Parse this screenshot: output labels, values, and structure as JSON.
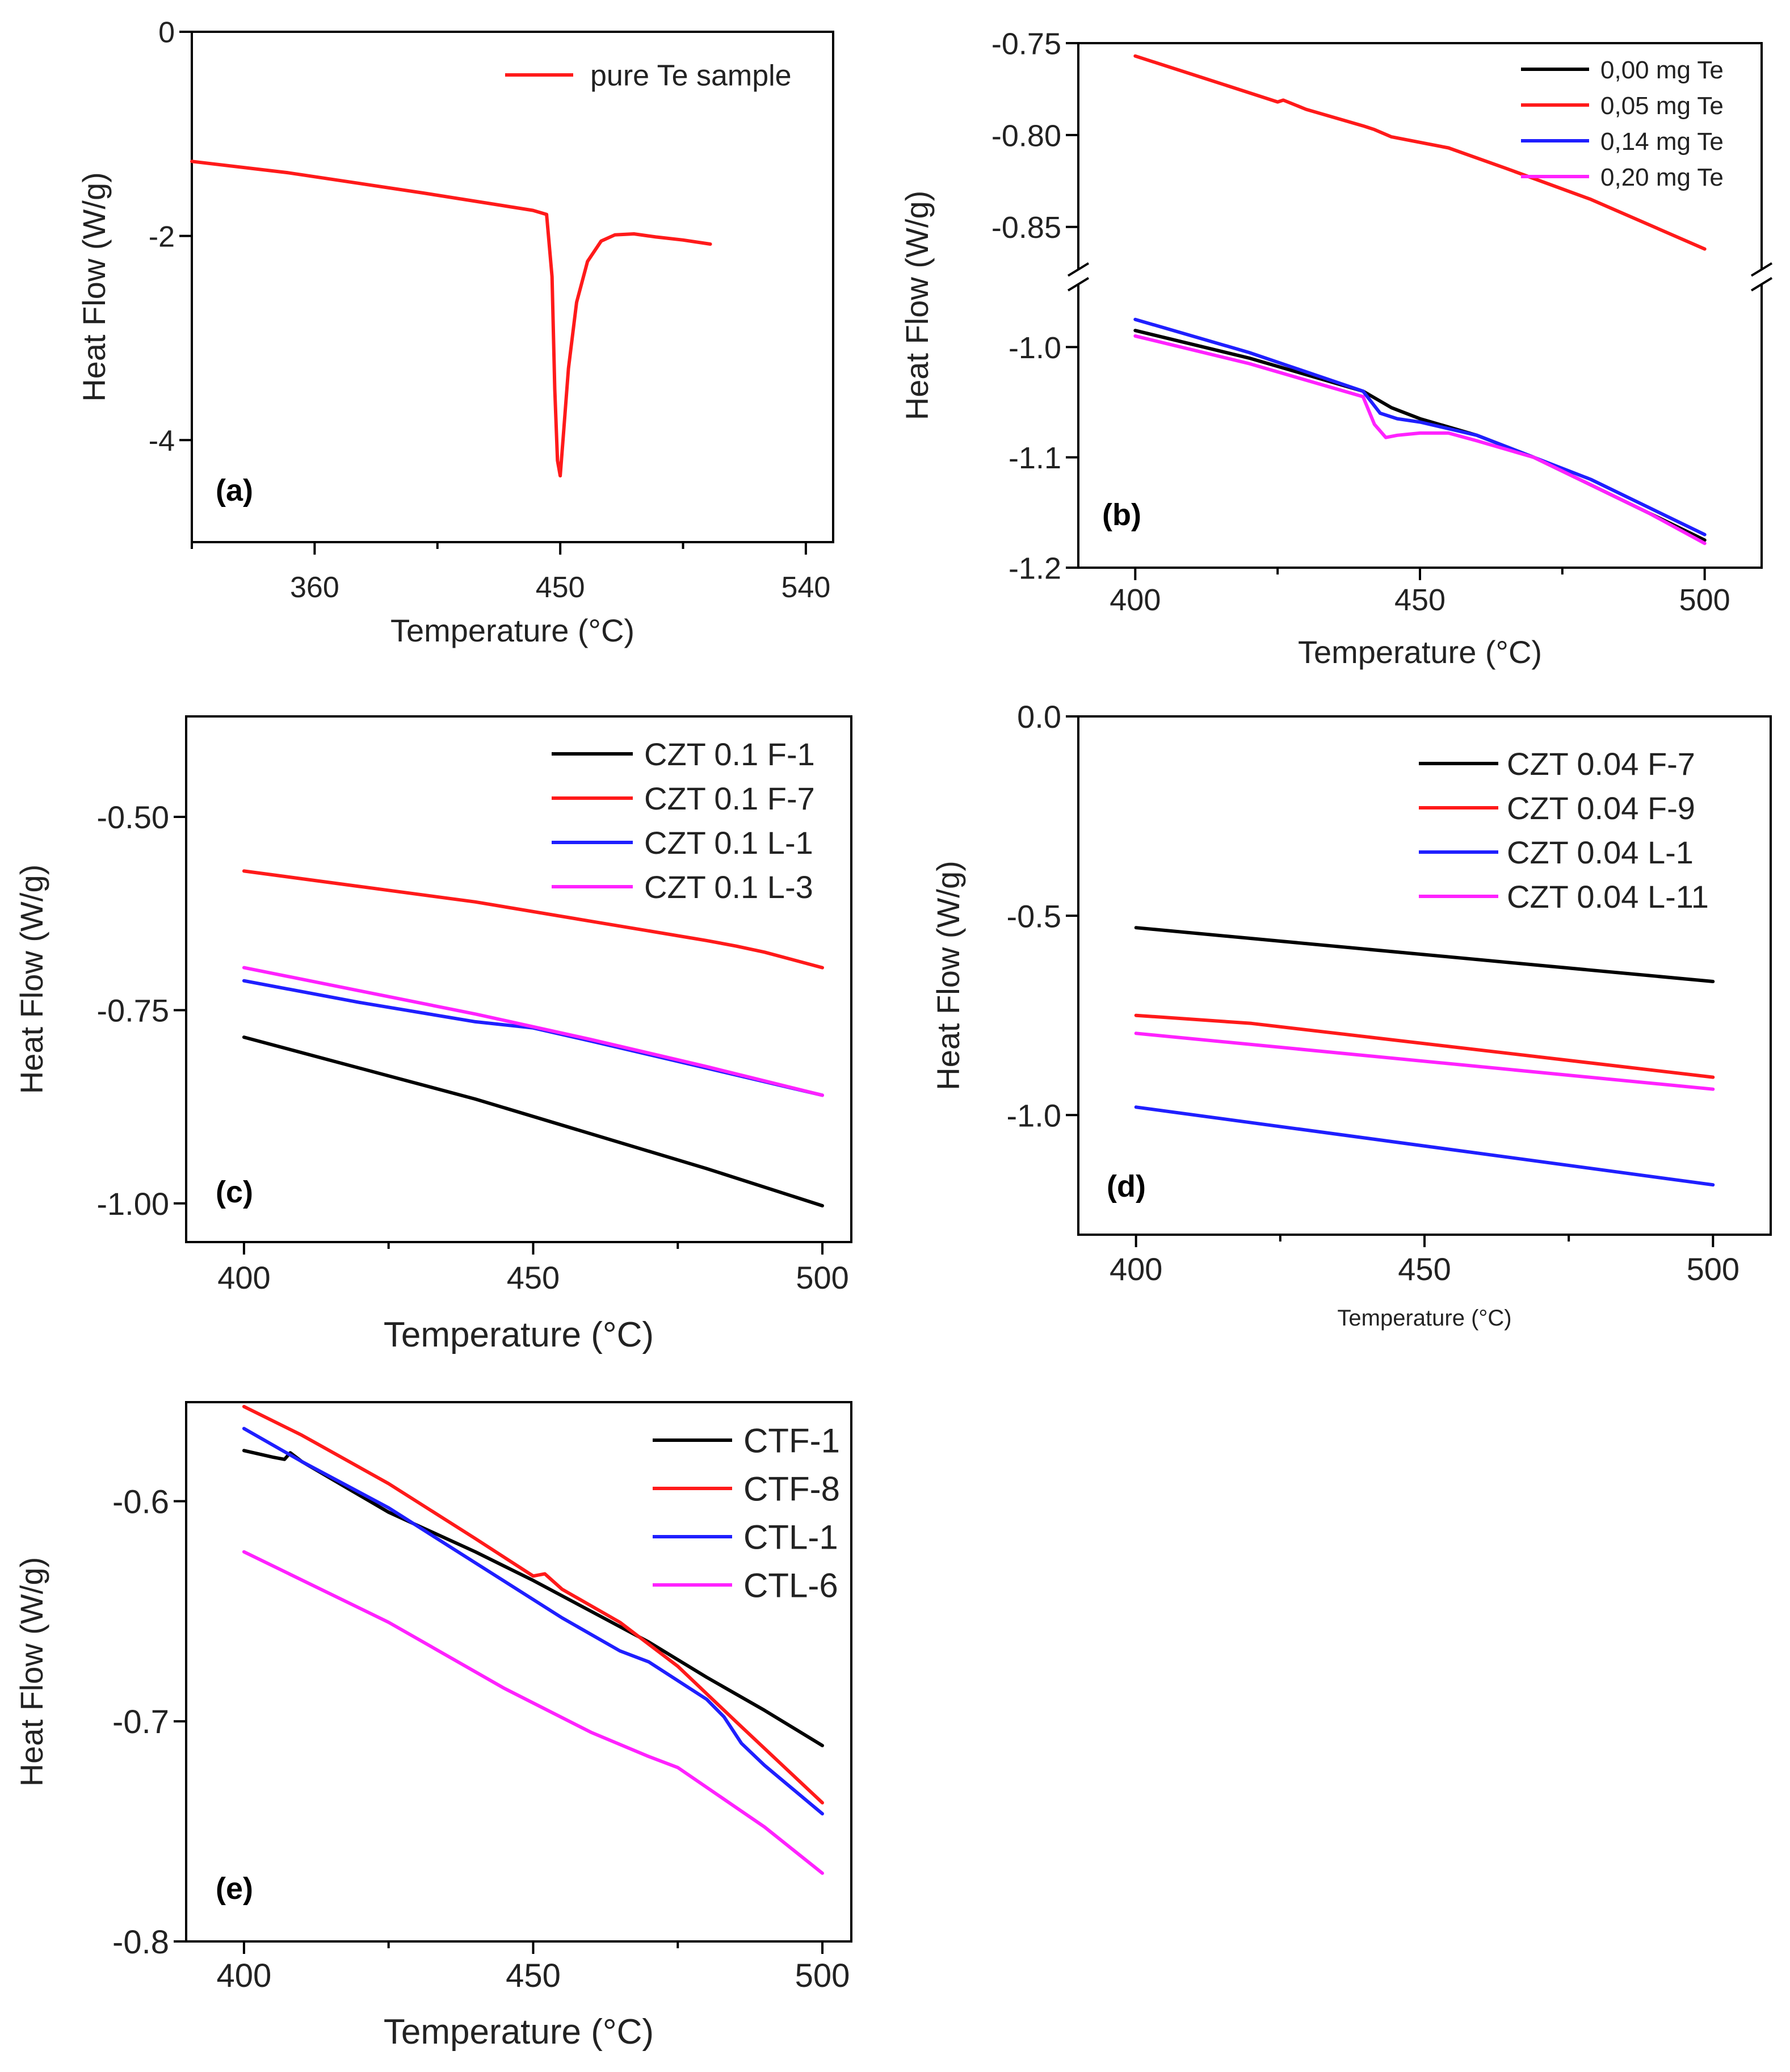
{
  "colors": {
    "black": "#000000",
    "red": "#ff1a1a",
    "blue": "#1f1fff",
    "magenta": "#ff22ff"
  },
  "chart_data": [
    {
      "panel": "(a)",
      "type": "line",
      "xlabel": "Temperature (°C)",
      "ylabel": "Heat Flow (W/g)",
      "xlim": [
        315,
        550
      ],
      "ylim": [
        -5,
        0
      ],
      "xticks": [
        360,
        450,
        540
      ],
      "yticks": [
        0,
        -2,
        -4
      ],
      "series": [
        {
          "name": "pure Te sample",
          "color": "red",
          "x": [
            315,
            350,
            400,
            440,
            445,
            447,
            448,
            449,
            450,
            451,
            453,
            456,
            460,
            465,
            470,
            477,
            485,
            495,
            505
          ],
          "y": [
            -1.27,
            -1.38,
            -1.58,
            -1.75,
            -1.79,
            -2.4,
            -3.5,
            -4.2,
            -4.35,
            -4.0,
            -3.3,
            -2.65,
            -2.25,
            -2.05,
            -1.99,
            -1.98,
            -2.01,
            -2.04,
            -2.08
          ]
        }
      ]
    },
    {
      "panel": "(b)",
      "type": "line",
      "xlabel": "Temperature (°C)",
      "ylabel": "Heat Flow (W/g)",
      "xlim": [
        390,
        510
      ],
      "xticks": [
        400,
        450,
        500
      ],
      "y_upper": {
        "lim": [
          -0.875,
          -0.75
        ],
        "ticks": [
          "-0.75",
          "-0.80",
          "-0.85"
        ]
      },
      "y_lower": {
        "lim": [
          -1.2,
          -0.94
        ],
        "ticks": [
          "-1.0",
          "-1.1",
          "-1.2"
        ]
      },
      "series": [
        {
          "name": "0,00 mg Te",
          "color": "black",
          "x": [
            400,
            420,
            440,
            445,
            450,
            460,
            470,
            480,
            490,
            500
          ],
          "y": [
            -0.985,
            -1.01,
            -1.04,
            -1.055,
            -1.065,
            -1.08,
            -1.1,
            -1.125,
            -1.15,
            -1.175
          ]
        },
        {
          "name": "0,05 mg Te",
          "color": "red",
          "x": [
            400,
            410,
            420,
            425,
            426,
            430,
            440,
            442,
            445,
            455,
            465,
            480,
            500
          ],
          "y": [
            -0.757,
            -0.767,
            -0.777,
            -0.782,
            -0.781,
            -0.786,
            -0.795,
            -0.797,
            -0.801,
            -0.807,
            -0.818,
            -0.835,
            -0.862
          ]
        },
        {
          "name": "0,14 mg Te",
          "color": "blue",
          "x": [
            400,
            420,
            440,
            443,
            446,
            450,
            460,
            470,
            480,
            490,
            500
          ],
          "y": [
            -0.975,
            -1.005,
            -1.04,
            -1.06,
            -1.065,
            -1.068,
            -1.08,
            -1.1,
            -1.12,
            -1.145,
            -1.17
          ]
        },
        {
          "name": "0,20 mg Te",
          "color": "magenta",
          "x": [
            400,
            420,
            440,
            442,
            444,
            446,
            450,
            455,
            460,
            470,
            480,
            490,
            500
          ],
          "y": [
            -0.99,
            -1.015,
            -1.045,
            -1.07,
            -1.082,
            -1.08,
            -1.078,
            -1.078,
            -1.085,
            -1.1,
            -1.125,
            -1.15,
            -1.178
          ]
        }
      ]
    },
    {
      "panel": "(c)",
      "type": "line",
      "xlabel": "Temperature (°C)",
      "ylabel": "Heat Flow (W/g)",
      "xlim": [
        390,
        505
      ],
      "ylim": [
        -1.05,
        -0.37
      ],
      "xticks": [
        400,
        450,
        500
      ],
      "yticks": [
        "-0.50",
        "-0.75",
        "-1.00"
      ],
      "series": [
        {
          "name": "CZT 0.1 F-1",
          "color": "black",
          "x": [
            400,
            420,
            440,
            460,
            480,
            500
          ],
          "y": [
            -0.785,
            -0.825,
            -0.865,
            -0.91,
            -0.955,
            -1.003
          ]
        },
        {
          "name": "CZT 0.1 F-7",
          "color": "red",
          "x": [
            400,
            420,
            440,
            460,
            480,
            485,
            490,
            500
          ],
          "y": [
            -0.57,
            -0.59,
            -0.61,
            -0.635,
            -0.66,
            -0.667,
            -0.675,
            -0.695
          ]
        },
        {
          "name": "CZT 0.1 L-1",
          "color": "blue",
          "x": [
            400,
            420,
            440,
            450,
            460,
            480,
            500
          ],
          "y": [
            -0.712,
            -0.74,
            -0.765,
            -0.773,
            -0.79,
            -0.825,
            -0.86
          ]
        },
        {
          "name": "CZT 0.1 L-3",
          "color": "magenta",
          "x": [
            400,
            420,
            440,
            460,
            480,
            500
          ],
          "y": [
            -0.695,
            -0.725,
            -0.755,
            -0.788,
            -0.823,
            -0.86
          ]
        }
      ]
    },
    {
      "panel": "(d)",
      "type": "line",
      "xlabel": "Temperature (°C)",
      "ylabel": "Heat Flow (W/g)",
      "xlim": [
        390,
        510
      ],
      "ylim": [
        -1.3,
        0
      ],
      "xticks": [
        400,
        450,
        500
      ],
      "yticks": [
        "0.0",
        "-0.5",
        "-1.0"
      ],
      "series": [
        {
          "name": "CZT 0.04 F-7",
          "color": "black",
          "x": [
            400,
            500
          ],
          "y": [
            -0.53,
            -0.665
          ]
        },
        {
          "name": "CZT 0.04 F-9",
          "color": "red",
          "x": [
            400,
            420,
            500
          ],
          "y": [
            -0.75,
            -0.77,
            -0.905
          ]
        },
        {
          "name": "CZT 0.04 L-1",
          "color": "blue",
          "x": [
            400,
            500
          ],
          "y": [
            -0.98,
            -1.175
          ]
        },
        {
          "name": "CZT 0.04 L-11",
          "color": "magenta",
          "x": [
            400,
            500
          ],
          "y": [
            -0.795,
            -0.935
          ]
        }
      ]
    },
    {
      "panel": "(e)",
      "type": "line",
      "xlabel": "Temperature (°C)",
      "ylabel": "Heat Flow (W/g)",
      "xlim": [
        390,
        505
      ],
      "ylim": [
        -0.8,
        -0.555
      ],
      "xticks": [
        400,
        450,
        500
      ],
      "yticks": [
        "-0.6",
        "-0.7",
        "-0.8"
      ],
      "series": [
        {
          "name": "CTF-1",
          "color": "black",
          "x": [
            400,
            405,
            407,
            408,
            410,
            425,
            440,
            450,
            460,
            470,
            480,
            490,
            500
          ],
          "y": [
            -0.577,
            -0.58,
            -0.581,
            -0.578,
            -0.582,
            -0.605,
            -0.623,
            -0.636,
            -0.65,
            -0.664,
            -0.68,
            -0.695,
            -0.711
          ]
        },
        {
          "name": "CTF-8",
          "color": "red",
          "x": [
            400,
            410,
            425,
            440,
            450,
            452,
            455,
            465,
            475,
            485,
            500
          ],
          "y": [
            -0.557,
            -0.57,
            -0.592,
            -0.617,
            -0.634,
            -0.633,
            -0.64,
            -0.655,
            -0.675,
            -0.7,
            -0.737
          ]
        },
        {
          "name": "CTL-1",
          "color": "blue",
          "x": [
            400,
            410,
            425,
            440,
            455,
            465,
            470,
            480,
            483,
            486,
            490,
            500
          ],
          "y": [
            -0.567,
            -0.582,
            -0.603,
            -0.628,
            -0.653,
            -0.668,
            -0.673,
            -0.69,
            -0.698,
            -0.71,
            -0.72,
            -0.742
          ]
        },
        {
          "name": "CTL-6",
          "color": "magenta",
          "x": [
            400,
            425,
            445,
            460,
            470,
            475,
            490,
            500
          ],
          "y": [
            -0.623,
            -0.655,
            -0.685,
            -0.705,
            -0.716,
            -0.721,
            -0.748,
            -0.769
          ]
        }
      ]
    }
  ]
}
